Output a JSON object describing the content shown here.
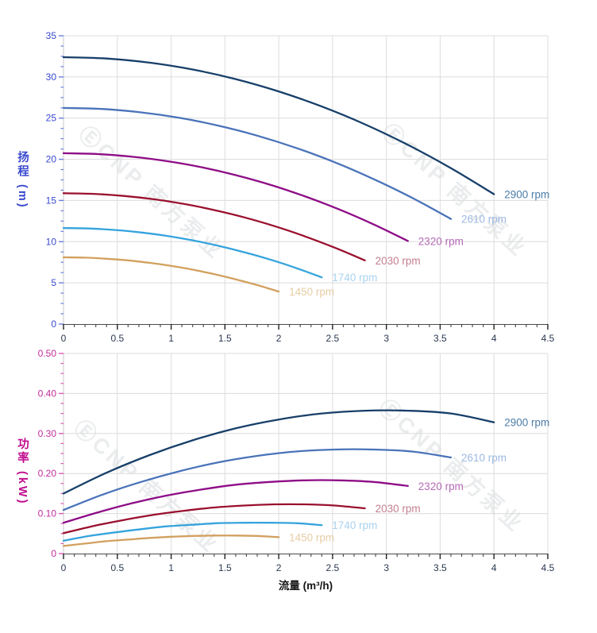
{
  "watermark": {
    "text": "ⒺCNP 南方泵业"
  },
  "chart_data": [
    {
      "type": "line",
      "title": "",
      "xlabel": "",
      "ylabel": "扬程 (m)",
      "xlim": [
        0,
        4.5
      ],
      "ylim": [
        0,
        35
      ],
      "grid": true,
      "legend_position": "end-of-curve",
      "xticks": [
        0,
        0.5,
        1,
        1.5,
        2,
        2.5,
        3,
        3.5,
        4,
        4.5
      ],
      "xtick_labels": [
        "0",
        "0.5",
        "1",
        "1.5",
        "2",
        "2.5",
        "3",
        "3.5",
        "4",
        "4.5"
      ],
      "yticks": [
        0,
        5,
        10,
        15,
        20,
        25,
        30,
        35
      ],
      "ytick_labels": [
        "0",
        "5",
        "10",
        "15",
        "20",
        "25",
        "30",
        "35"
      ],
      "x_minor_per_major": 5,
      "y_minor_per_major": 4,
      "axis_colors": {
        "y_tick": "#6b7de0",
        "y_label": "#3a49cf",
        "x_tick": "#222222",
        "x_label": "#2b3950",
        "y_line": "#c9c9c9",
        "x_line": "#4a4a4a",
        "grid": "#dcdcdc"
      },
      "series": [
        {
          "name": "2900 rpm",
          "color": "#173f69",
          "label_color": "#4b7ca8",
          "points": [
            [
              0,
              32.4
            ],
            [
              0.4,
              32.23
            ],
            [
              0.8,
              31.73
            ],
            [
              1.2,
              30.9
            ],
            [
              1.6,
              29.74
            ],
            [
              2,
              28.24
            ],
            [
              2.4,
              26.41
            ],
            [
              2.8,
              24.25
            ],
            [
              3.2,
              21.75
            ],
            [
              3.6,
              18.92
            ],
            [
              4,
              15.76
            ]
          ]
        },
        {
          "name": "2610 rpm",
          "color": "#4a73b9",
          "label_color": "#9db9e2",
          "points": [
            [
              0,
              26.24
            ],
            [
              0.36,
              26.11
            ],
            [
              0.72,
              25.7
            ],
            [
              1.08,
              25.03
            ],
            [
              1.44,
              24.08
            ],
            [
              1.8,
              22.87
            ],
            [
              2.16,
              21.39
            ],
            [
              2.52,
              19.64
            ],
            [
              2.88,
              17.61
            ],
            [
              3.24,
              15.32
            ],
            [
              3.6,
              12.76
            ]
          ]
        },
        {
          "name": "2320 rpm",
          "color": "#8e0c86",
          "label_color": "#b56ab6",
          "points": [
            [
              0,
              20.74
            ],
            [
              0.32,
              20.63
            ],
            [
              0.64,
              20.31
            ],
            [
              0.96,
              19.78
            ],
            [
              1.28,
              19.04
            ],
            [
              1.6,
              18.08
            ],
            [
              1.92,
              16.91
            ],
            [
              2.24,
              15.52
            ],
            [
              2.56,
              13.92
            ],
            [
              2.88,
              12.11
            ],
            [
              3.2,
              10.09
            ]
          ]
        },
        {
          "name": "2030 rpm",
          "color": "#9a102e",
          "label_color": "#c4808f",
          "points": [
            [
              0,
              15.88
            ],
            [
              0.28,
              15.8
            ],
            [
              0.56,
              15.55
            ],
            [
              0.84,
              15.15
            ],
            [
              1.12,
              14.58
            ],
            [
              1.4,
              13.84
            ],
            [
              1.68,
              12.95
            ],
            [
              1.96,
              11.89
            ],
            [
              2.24,
              10.66
            ],
            [
              2.52,
              9.28
            ],
            [
              2.8,
              7.73
            ]
          ]
        },
        {
          "name": "1740 rpm",
          "color": "#35a3dd",
          "label_color": "#a9d2ee",
          "points": [
            [
              0,
              11.66
            ],
            [
              0.24,
              11.6
            ],
            [
              0.48,
              11.42
            ],
            [
              0.72,
              11.12
            ],
            [
              0.96,
              10.7
            ],
            [
              1.2,
              10.16
            ],
            [
              1.44,
              9.5
            ],
            [
              1.68,
              8.72
            ],
            [
              1.92,
              7.83
            ],
            [
              2.16,
              6.81
            ],
            [
              2.4,
              5.67
            ]
          ]
        },
        {
          "name": "1450 rpm",
          "color": "#d2a05e",
          "label_color": "#e8cda3",
          "points": [
            [
              0,
              8.1
            ],
            [
              0.2,
              8.06
            ],
            [
              0.4,
              7.93
            ],
            [
              0.6,
              7.73
            ],
            [
              0.8,
              7.43
            ],
            [
              1,
              7.06
            ],
            [
              1.2,
              6.6
            ],
            [
              1.4,
              6.06
            ],
            [
              1.6,
              5.43
            ],
            [
              1.8,
              4.73
            ],
            [
              2,
              3.94
            ]
          ]
        }
      ]
    },
    {
      "type": "line",
      "title": "",
      "xlabel": "流量 (m³/h)",
      "ylabel": "功率 (kW)",
      "xlim": [
        0,
        4.5
      ],
      "ylim": [
        0,
        0.5
      ],
      "grid": true,
      "legend_position": "end-of-curve",
      "xticks": [
        0,
        0.5,
        1,
        1.5,
        2,
        2.5,
        3,
        3.5,
        4,
        4.5
      ],
      "xtick_labels": [
        "0",
        "0.5",
        "1",
        "1.5",
        "2",
        "2.5",
        "3",
        "3.5",
        "4",
        "4.5"
      ],
      "yticks": [
        0,
        0.1,
        0.2,
        0.3,
        0.4,
        0.5
      ],
      "ytick_labels": [
        "0",
        "0.10",
        "0.20",
        "0.30",
        "0.40",
        "0.50"
      ],
      "x_minor_per_major": 5,
      "y_minor_per_major": 4,
      "axis_colors": {
        "y_tick": "#dd55b8",
        "y_label": "#c12d9c",
        "x_tick": "#222222",
        "x_label": "#2b3950",
        "y_line": "#c9c9c9",
        "x_line": "#4a4a4a",
        "grid": "#dcdcdc"
      },
      "series": [
        {
          "name": "2900 rpm",
          "color": "#173f69",
          "label_color": "#4b7ca8",
          "points": [
            [
              0,
              0.15
            ],
            [
              0.4,
              0.202
            ],
            [
              0.8,
              0.246
            ],
            [
              1.2,
              0.283
            ],
            [
              1.6,
              0.313
            ],
            [
              2,
              0.335
            ],
            [
              2.4,
              0.35
            ],
            [
              2.8,
              0.357
            ],
            [
              3.2,
              0.357
            ],
            [
              3.6,
              0.35
            ],
            [
              4,
              0.328
            ]
          ]
        },
        {
          "name": "2610 rpm",
          "color": "#4a73b9",
          "label_color": "#9db9e2",
          "points": [
            [
              0,
              0.109
            ],
            [
              0.36,
              0.147
            ],
            [
              0.72,
              0.179
            ],
            [
              1.08,
              0.206
            ],
            [
              1.44,
              0.228
            ],
            [
              1.8,
              0.244
            ],
            [
              2.16,
              0.255
            ],
            [
              2.52,
              0.26
            ],
            [
              2.88,
              0.26
            ],
            [
              3.24,
              0.255
            ],
            [
              3.6,
              0.24
            ]
          ]
        },
        {
          "name": "2320 rpm",
          "color": "#8e0c86",
          "label_color": "#b56ab6",
          "points": [
            [
              0,
              0.077
            ],
            [
              0.32,
              0.103
            ],
            [
              0.64,
              0.126
            ],
            [
              0.96,
              0.145
            ],
            [
              1.28,
              0.16
            ],
            [
              1.6,
              0.172
            ],
            [
              1.92,
              0.179
            ],
            [
              2.24,
              0.183
            ],
            [
              2.56,
              0.183
            ],
            [
              2.88,
              0.179
            ],
            [
              3.2,
              0.169
            ]
          ]
        },
        {
          "name": "2030 rpm",
          "color": "#9a102e",
          "label_color": "#c4808f",
          "points": [
            [
              0,
              0.051
            ],
            [
              0.28,
              0.069
            ],
            [
              0.56,
              0.084
            ],
            [
              0.84,
              0.097
            ],
            [
              1.12,
              0.107
            ],
            [
              1.4,
              0.115
            ],
            [
              1.68,
              0.12
            ],
            [
              1.96,
              0.123
            ],
            [
              2.24,
              0.123
            ],
            [
              2.52,
              0.12
            ],
            [
              2.8,
              0.113
            ]
          ]
        },
        {
          "name": "1740 rpm",
          "color": "#35a3dd",
          "label_color": "#a9d2ee",
          "points": [
            [
              0,
              0.032
            ],
            [
              0.24,
              0.044
            ],
            [
              0.48,
              0.053
            ],
            [
              0.72,
              0.061
            ],
            [
              0.96,
              0.068
            ],
            [
              1.2,
              0.072
            ],
            [
              1.44,
              0.076
            ],
            [
              1.68,
              0.077
            ],
            [
              1.92,
              0.077
            ],
            [
              2.16,
              0.076
            ],
            [
              2.4,
              0.071
            ]
          ]
        },
        {
          "name": "1450 rpm",
          "color": "#d2a05e",
          "label_color": "#e8cda3",
          "points": [
            [
              0,
              0.019
            ],
            [
              0.2,
              0.025
            ],
            [
              0.4,
              0.031
            ],
            [
              0.6,
              0.035
            ],
            [
              0.8,
              0.039
            ],
            [
              1,
              0.042
            ],
            [
              1.2,
              0.044
            ],
            [
              1.4,
              0.045
            ],
            [
              1.6,
              0.045
            ],
            [
              1.8,
              0.044
            ],
            [
              2,
              0.041
            ]
          ]
        }
      ]
    }
  ]
}
